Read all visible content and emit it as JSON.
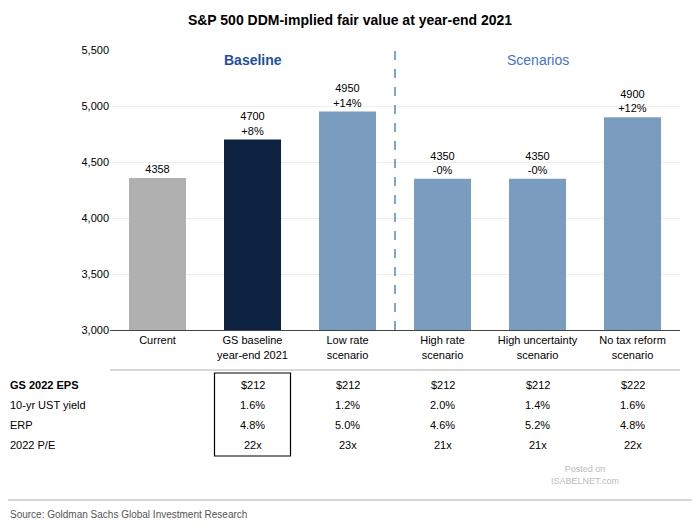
{
  "chart_data": {
    "type": "bar",
    "title": "S&P 500 DDM-implied fair value at year-end 2021",
    "categories": [
      "Current",
      "GS baseline\nyear-end 2021",
      "Low rate\nscenario",
      "High rate\nscenario",
      "High uncertainty\nscenario",
      "No tax reform\nscenario"
    ],
    "values": [
      4358,
      4700,
      4950,
      4350,
      4350,
      4900
    ],
    "value_labels": [
      "4358",
      "4700\n+8%",
      "4950\n+14%",
      "4350\n-0%",
      "4350\n-0%",
      "4900\n+12%"
    ],
    "data_labels": true,
    "colors": [
      "#b0b0b0",
      "#0d2240",
      "#7a9cbf",
      "#7a9cbf",
      "#7a9cbf",
      "#7a9cbf"
    ],
    "ylim": [
      3000,
      5500
    ],
    "yticks": [
      {
        "value": 3000,
        "label": "3,000"
      },
      {
        "value": 3500,
        "label": "3,500"
      },
      {
        "value": 4000,
        "label": "4,000"
      },
      {
        "value": 4500,
        "label": "4,500"
      },
      {
        "value": 5000,
        "label": "5,000"
      },
      {
        "value": 5500,
        "label": "5,500"
      }
    ],
    "grid": true,
    "annotations": [
      {
        "text": "Baseline",
        "color": "#1f4e9c"
      },
      {
        "text": "Scenarios",
        "color": "#4472c4"
      }
    ],
    "table": [
      {
        "label": "GS 2022 EPS",
        "values": [
          null,
          "$212",
          "$212",
          "$212",
          "$212",
          "$222"
        ]
      },
      {
        "label": "10-yr UST yield",
        "values": [
          null,
          "1.6%",
          "1.2%",
          "2.0%",
          "1.4%",
          "1.6%"
        ]
      },
      {
        "label": "ERP",
        "values": [
          null,
          "4.8%",
          "5.0%",
          "4.6%",
          "5.2%",
          "4.8%"
        ]
      },
      {
        "label": "2022 P/E",
        "values": [
          null,
          "22x",
          "23x",
          "21x",
          "21x",
          "22x"
        ]
      }
    ],
    "source": "Source: Goldman Sachs Global Investment Research",
    "watermark": [
      "Posted on",
      "ISABELNET.com"
    ]
  }
}
